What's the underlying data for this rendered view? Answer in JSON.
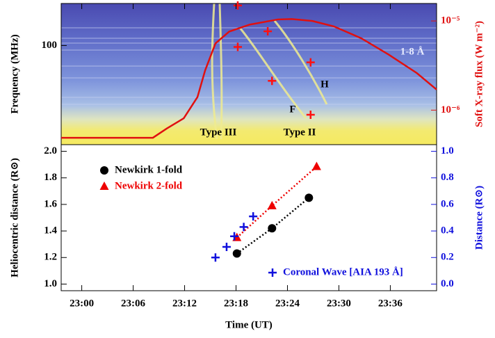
{
  "chart_data": [
    {
      "type": "line",
      "ylabel": "Frequency (MHz)",
      "y2label": "Soft X-ray flux (W m⁻²)",
      "ylog": true,
      "y2log": true,
      "xlim": [
        -2.4,
        41.4
      ],
      "ylim": [
        25,
        180
      ],
      "yticks": [
        100
      ],
      "y2lim": [
        4.1e-07,
        1.57e-05
      ],
      "y2ticks": [
        {
          "value": 1e-05,
          "label": "10⁻⁵"
        },
        {
          "value": 1e-06,
          "label": "10⁻⁶"
        }
      ],
      "annotations": [
        "Type III",
        "Type II",
        "H",
        "F",
        "1-8 Å"
      ],
      "series": [
        {
          "color": "#e01010",
          "axis": "y2",
          "x": [
            -2.4,
            2.6,
            8.3,
            9.9,
            11.9,
            13.5,
            14.4,
            15.6,
            17.2,
            19.6,
            22.9,
            24.5,
            26.9,
            29.4,
            32.6,
            35.8,
            39.1,
            41.4
          ],
          "values": [
            4.9e-07,
            4.9e-07,
            4.9e-07,
            6.2e-07,
            8.1e-07,
            1.4e-06,
            2.8e-06,
            5.6e-06,
            7.6e-06,
            9.1e-06,
            1.04e-05,
            1.05e-05,
            1e-05,
            8.7e-06,
            6.4e-06,
            4.2e-06,
            2.6e-06,
            1.7e-06
          ]
        },
        {
          "color": "#ff1010",
          "marker": "plus",
          "x": [
            18.2,
            21.7,
            18.2,
            26.7,
            22.2,
            26.7
          ],
          "values": [
            175,
            122,
            98,
            79,
            61,
            38
          ]
        }
      ]
    },
    {
      "type": "scatter",
      "xlabel": "Time (UT)",
      "ylabel": "Heliocentric distance (R⊙)",
      "y2label": "Distance (R⊙)",
      "xlim": [
        -2.4,
        41.4
      ],
      "xticks": [
        {
          "value": 0,
          "label": "23:00"
        },
        {
          "value": 6,
          "label": "23:06"
        },
        {
          "value": 12,
          "label": "23:12"
        },
        {
          "value": 18,
          "label": "23:18"
        },
        {
          "value": 24,
          "label": "23:24"
        },
        {
          "value": 30,
          "label": "23:30"
        },
        {
          "value": 36,
          "label": "23:36"
        }
      ],
      "ylim": [
        0.95,
        2.05
      ],
      "yticks": [
        {
          "value": 1,
          "label": "1.0"
        },
        1.2,
        1.4,
        1.6,
        1.8,
        {
          "value": 2,
          "label": "2.0"
        }
      ],
      "y2lim": [
        -0.05,
        1.05
      ],
      "y2ticks": [
        {
          "value": 0,
          "label": "0.0"
        },
        0.2,
        0.4,
        0.6,
        0.8,
        {
          "value": 1,
          "label": "1.0"
        }
      ],
      "series": [
        {
          "name": "Newkirk 1-fold",
          "color": "#000000",
          "marker": "circle",
          "connect": true,
          "x": [
            18.1,
            22.2,
            26.5
          ],
          "values": [
            1.23,
            1.42,
            1.65
          ]
        },
        {
          "name": "Newkirk 2-fold",
          "color": "#ee0000",
          "marker": "triangle",
          "connect": true,
          "x": [
            18.1,
            22.2,
            27.4
          ],
          "values": [
            1.35,
            1.59,
            1.885
          ]
        },
        {
          "name": "Coronal Wave [AIA 193 Å]",
          "color": "#1010dd",
          "marker": "plus",
          "axis": "y2",
          "x": [
            15.6,
            16.9,
            17.8,
            18.9,
            20.0
          ],
          "values": [
            0.2,
            0.28,
            0.36,
            0.43,
            0.51
          ]
        }
      ]
    }
  ]
}
